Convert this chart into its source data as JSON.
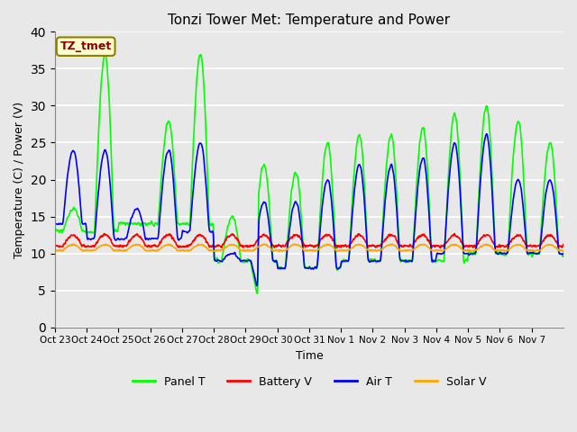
{
  "title": "Tonzi Tower Met: Temperature and Power",
  "xlabel": "Time",
  "ylabel": "Temperature (C) / Power (V)",
  "ylim": [
    0,
    40
  ],
  "yticks": [
    0,
    5,
    10,
    15,
    20,
    25,
    30,
    35,
    40
  ],
  "annotation_text": "TZ_tmet",
  "annotation_color": "#8B0000",
  "annotation_bg": "#FFFFCC",
  "annotation_edge": "#8B8000",
  "plot_bg": "#E8E8E8",
  "fig_bg": "#E8E8E8",
  "series": {
    "panel_t": {
      "color": "#00FF00",
      "label": "Panel T",
      "lw": 1.2
    },
    "battery_v": {
      "color": "#FF0000",
      "label": "Battery V",
      "lw": 1.2
    },
    "air_t": {
      "color": "#0000FF",
      "label": "Air T",
      "lw": 1.2
    },
    "solar_v": {
      "color": "#FFA500",
      "label": "Solar V",
      "lw": 1.2
    }
  },
  "tick_labels": [
    "Oct 23",
    "Oct 24",
    "Oct 25",
    "Oct 26",
    "Oct 27",
    "Oct 28",
    "Oct 29",
    "Oct 30",
    "Oct 31",
    "Nov 1",
    "Nov 2",
    "Nov 3",
    "Nov 4",
    "Nov 5",
    "Nov 6",
    "Nov 7"
  ],
  "num_days": 16,
  "ppd": 144,
  "font_size": 9,
  "title_fontsize": 11
}
